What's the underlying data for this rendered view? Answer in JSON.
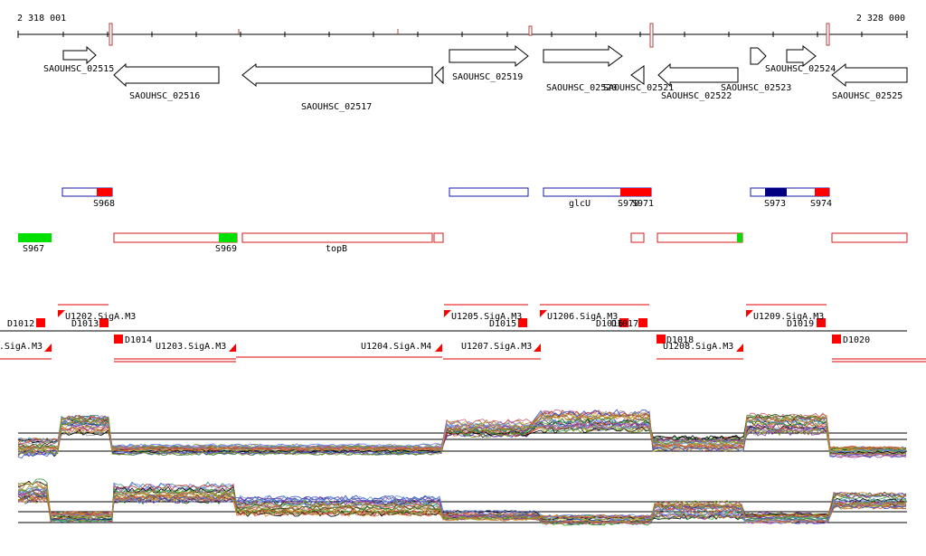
{
  "ruler": {
    "start_label": "2 318 001",
    "end_label": "2 328 000"
  },
  "genes_fwd": [
    {
      "label": "SAOUHSC_02515"
    },
    {
      "label": "SAOUHSC_02519"
    },
    {
      "label": "SAOUHSC_02520"
    },
    {
      "label": "SAOUHSC_02523"
    },
    {
      "label": "SAOUHSC_02524"
    }
  ],
  "genes_rev": [
    {
      "label": "SAOUHSC_02516"
    },
    {
      "label": "SAOUHSC_02517"
    },
    {
      "label": "SAOUHSC_02521"
    },
    {
      "label": "SAOUHSC_02522"
    },
    {
      "label": "SAOUHSC_02525"
    }
  ],
  "fwd_features": [
    "S968",
    "glcU",
    "S970",
    "S971",
    "S973",
    "S974"
  ],
  "rev_features": [
    "S967",
    "S969",
    "topB"
  ],
  "fwd_promoters": [
    "U1202.SigA.M3",
    "U1205.SigA.M3",
    "U1206.SigA.M3",
    "U1209.SigA.M3"
  ],
  "rev_promoters": [
    ".SigA.M3",
    "U1203.SigA.M3",
    "U1204.SigA.M4",
    "U1207.SigA.M3",
    "U1208.SigA.M3"
  ],
  "fwd_terminators": [
    "D1012",
    "D1013",
    "D1015",
    "D1016",
    "D1017",
    "D1019"
  ],
  "rev_terminators": [
    "D1014",
    "D1018",
    "D1020"
  ],
  "colors": {
    "gene_outline": "#000000",
    "fwd_feature": "#1a1aa8",
    "rev_feature": "#d41a1a",
    "accent_red": "#ff0000",
    "accent_green": "#00e000",
    "accent_navy": "#000080",
    "ruler_mark": "#b04040"
  }
}
